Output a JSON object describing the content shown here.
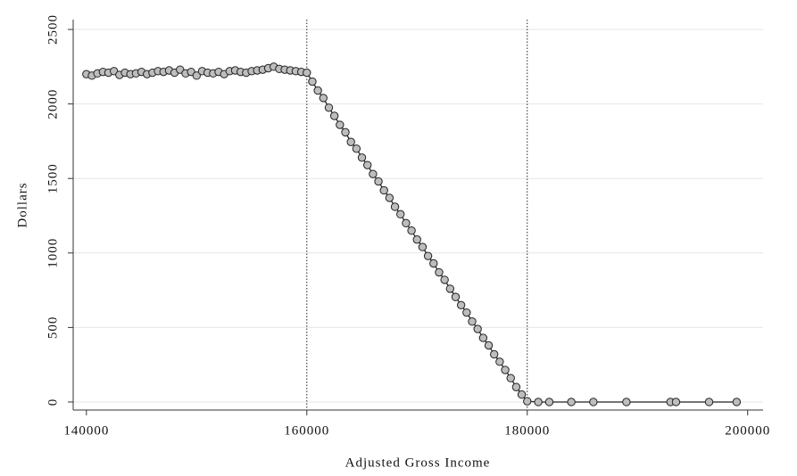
{
  "chart_data": {
    "type": "line",
    "x_label": "Adjusted Gross Income",
    "y_label": "Dollars",
    "xlim": [
      138800,
      201400
    ],
    "ylim": [
      -54,
      2566
    ],
    "xticks": [
      140000,
      160000,
      180000,
      200000
    ],
    "yticks": [
      0,
      500,
      1000,
      1500,
      2000,
      2500
    ],
    "grid": true,
    "vlines": [
      160000,
      180000
    ],
    "series": [
      {
        "color": "#bdbdbd",
        "x": [
          140000,
          140500,
          141000,
          141500,
          142000,
          142500,
          143000,
          143500,
          144000,
          144500,
          145000,
          145500,
          146000,
          146500,
          147000,
          147500,
          148000,
          148500,
          149000,
          149500,
          150000,
          150500,
          151000,
          151500,
          152000,
          152500,
          153000,
          153500,
          154000,
          154500,
          155000,
          155500,
          156000,
          156500,
          157000,
          157500,
          158000,
          158500,
          159000,
          159500,
          160000,
          160500,
          161000,
          161500,
          162000,
          162500,
          163000,
          163500,
          164000,
          164500,
          165000,
          165500,
          166000,
          166500,
          167000,
          167500,
          168000,
          168500,
          169000,
          169500,
          170000,
          170500,
          171000,
          171500,
          172000,
          172500,
          173000,
          173500,
          174000,
          174500,
          175000,
          175500,
          176000,
          176500,
          177000,
          177500,
          178000,
          178500,
          179000,
          179500,
          180000,
          181000,
          182000,
          184000,
          186000,
          189000,
          193000,
          193500,
          196500,
          199000
        ],
        "values": [
          2200,
          2190,
          2205,
          2215,
          2210,
          2220,
          2195,
          2210,
          2200,
          2205,
          2215,
          2200,
          2210,
          2220,
          2215,
          2225,
          2210,
          2230,
          2205,
          2215,
          2190,
          2220,
          2210,
          2205,
          2215,
          2200,
          2220,
          2225,
          2215,
          2210,
          2220,
          2225,
          2230,
          2240,
          2250,
          2235,
          2230,
          2225,
          2220,
          2215,
          2210,
          2150,
          2090,
          2040,
          1975,
          1920,
          1860,
          1810,
          1745,
          1700,
          1640,
          1590,
          1530,
          1480,
          1420,
          1370,
          1310,
          1260,
          1200,
          1150,
          1090,
          1040,
          980,
          930,
          870,
          820,
          760,
          705,
          650,
          600,
          540,
          490,
          430,
          380,
          320,
          270,
          215,
          160,
          100,
          50,
          5,
          0,
          0,
          0,
          0,
          0,
          0,
          0,
          0,
          0
        ]
      }
    ]
  }
}
